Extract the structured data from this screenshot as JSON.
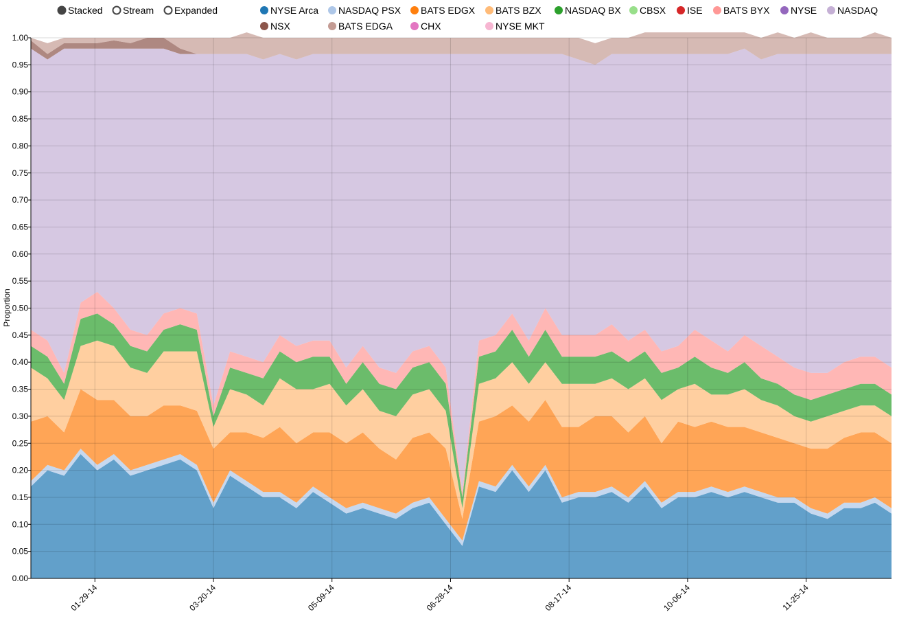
{
  "controls": [
    {
      "label": "Stacked",
      "selected": true
    },
    {
      "label": "Stream",
      "selected": false
    },
    {
      "label": "Expanded",
      "selected": false
    }
  ],
  "chart_data": {
    "type": "area",
    "stacked": true,
    "ylabel": "Proportion",
    "ylim": [
      0,
      1
    ],
    "y_ticks": [
      "0.00",
      "0.05",
      "0.10",
      "0.15",
      "0.20",
      "0.25",
      "0.30",
      "0.35",
      "0.40",
      "0.45",
      "0.50",
      "0.55",
      "0.60",
      "0.65",
      "0.70",
      "0.75",
      "0.80",
      "0.85",
      "0.90",
      "0.95",
      "1.00"
    ],
    "x_tick_labels": [
      "01-29-14",
      "03-20-14",
      "05-09-14",
      "06-28-14",
      "08-17-14",
      "10-06-14",
      "11-25-14"
    ],
    "x_tick_dates": [
      "2014-01-29",
      "2014-03-20",
      "2014-05-09",
      "2014-06-28",
      "2014-08-17",
      "2014-10-06",
      "2014-11-25"
    ],
    "x_range": [
      "2014-01-02",
      "2014-12-31"
    ],
    "grid": true,
    "legend_position": "top",
    "x": [
      "2014-01-02",
      "2014-01-09",
      "2014-01-16",
      "2014-01-23",
      "2014-01-30",
      "2014-02-06",
      "2014-02-13",
      "2014-02-20",
      "2014-02-27",
      "2014-03-06",
      "2014-03-13",
      "2014-03-20",
      "2014-03-27",
      "2014-04-03",
      "2014-04-10",
      "2014-04-17",
      "2014-04-24",
      "2014-05-01",
      "2014-05-08",
      "2014-05-15",
      "2014-05-22",
      "2014-05-29",
      "2014-06-05",
      "2014-06-12",
      "2014-06-19",
      "2014-06-26",
      "2014-07-03",
      "2014-07-10",
      "2014-07-17",
      "2014-07-24",
      "2014-07-31",
      "2014-08-07",
      "2014-08-14",
      "2014-08-21",
      "2014-08-28",
      "2014-09-04",
      "2014-09-11",
      "2014-09-18",
      "2014-09-25",
      "2014-10-02",
      "2014-10-09",
      "2014-10-16",
      "2014-10-23",
      "2014-10-30",
      "2014-11-06",
      "2014-11-13",
      "2014-11-20",
      "2014-11-27",
      "2014-12-04",
      "2014-12-11",
      "2014-12-18",
      "2014-12-24",
      "2014-12-31"
    ],
    "series": [
      {
        "name": "NYSE Arca",
        "color": "#1f77b4",
        "values": [
          0.17,
          0.2,
          0.19,
          0.23,
          0.2,
          0.22,
          0.19,
          0.2,
          0.21,
          0.22,
          0.2,
          0.13,
          0.19,
          0.17,
          0.15,
          0.15,
          0.13,
          0.16,
          0.14,
          0.12,
          0.13,
          0.12,
          0.11,
          0.13,
          0.14,
          0.1,
          0.06,
          0.17,
          0.16,
          0.2,
          0.16,
          0.2,
          0.14,
          0.15,
          0.15,
          0.16,
          0.14,
          0.17,
          0.13,
          0.15,
          0.15,
          0.16,
          0.15,
          0.16,
          0.15,
          0.14,
          0.14,
          0.12,
          0.11,
          0.13,
          0.13,
          0.14,
          0.12
        ]
      },
      {
        "name": "NASDAQ PSX",
        "color": "#aec7e8",
        "values": [
          0.01,
          0.01,
          0.01,
          0.01,
          0.01,
          0.01,
          0.01,
          0.01,
          0.01,
          0.01,
          0.01,
          0.01,
          0.01,
          0.01,
          0.01,
          0.01,
          0.01,
          0.01,
          0.01,
          0.01,
          0.01,
          0.01,
          0.01,
          0.01,
          0.01,
          0.01,
          0.01,
          0.01,
          0.01,
          0.01,
          0.01,
          0.01,
          0.01,
          0.01,
          0.01,
          0.01,
          0.01,
          0.01,
          0.01,
          0.01,
          0.01,
          0.01,
          0.01,
          0.01,
          0.01,
          0.01,
          0.01,
          0.01,
          0.01,
          0.01,
          0.01,
          0.01,
          0.01
        ]
      },
      {
        "name": "BATS EDGX",
        "color": "#ff7f0e",
        "values": [
          0.11,
          0.09,
          0.07,
          0.11,
          0.12,
          0.1,
          0.1,
          0.09,
          0.1,
          0.09,
          0.1,
          0.1,
          0.07,
          0.09,
          0.1,
          0.12,
          0.11,
          0.1,
          0.12,
          0.12,
          0.13,
          0.11,
          0.1,
          0.12,
          0.12,
          0.13,
          0.04,
          0.11,
          0.13,
          0.11,
          0.12,
          0.12,
          0.13,
          0.12,
          0.14,
          0.13,
          0.12,
          0.12,
          0.11,
          0.13,
          0.12,
          0.12,
          0.12,
          0.11,
          0.11,
          0.11,
          0.1,
          0.11,
          0.12,
          0.12,
          0.13,
          0.12,
          0.12
        ]
      },
      {
        "name": "BATS BZX",
        "color": "#ffbb78",
        "values": [
          0.1,
          0.07,
          0.06,
          0.08,
          0.11,
          0.1,
          0.09,
          0.08,
          0.1,
          0.1,
          0.11,
          0.04,
          0.08,
          0.07,
          0.06,
          0.09,
          0.1,
          0.08,
          0.09,
          0.07,
          0.08,
          0.07,
          0.08,
          0.08,
          0.08,
          0.07,
          0.02,
          0.07,
          0.07,
          0.08,
          0.07,
          0.07,
          0.08,
          0.08,
          0.06,
          0.07,
          0.08,
          0.07,
          0.08,
          0.06,
          0.08,
          0.05,
          0.06,
          0.07,
          0.06,
          0.06,
          0.05,
          0.05,
          0.06,
          0.05,
          0.05,
          0.05,
          0.05
        ]
      },
      {
        "name": "NASDAQ BX",
        "color": "#2ca02c",
        "values": [
          0.04,
          0.04,
          0.03,
          0.05,
          0.05,
          0.04,
          0.04,
          0.04,
          0.04,
          0.05,
          0.04,
          0.02,
          0.04,
          0.04,
          0.05,
          0.05,
          0.05,
          0.06,
          0.05,
          0.04,
          0.05,
          0.05,
          0.05,
          0.05,
          0.05,
          0.05,
          0.02,
          0.05,
          0.05,
          0.06,
          0.05,
          0.06,
          0.05,
          0.05,
          0.05,
          0.05,
          0.05,
          0.05,
          0.05,
          0.04,
          0.05,
          0.05,
          0.04,
          0.05,
          0.04,
          0.04,
          0.04,
          0.04,
          0.04,
          0.04,
          0.04,
          0.04,
          0.04
        ]
      },
      {
        "name": "CBSX",
        "color": "#98df8a",
        "values": [
          0,
          0,
          0,
          0,
          0,
          0,
          0,
          0,
          0,
          0,
          0,
          0,
          0,
          0,
          0,
          0,
          0,
          0,
          0,
          0,
          0,
          0,
          0,
          0,
          0,
          0,
          0,
          0,
          0,
          0,
          0,
          0,
          0,
          0,
          0,
          0,
          0,
          0,
          0,
          0,
          0,
          0,
          0,
          0,
          0,
          0,
          0,
          0,
          0,
          0,
          0,
          0,
          0
        ]
      },
      {
        "name": "ISE",
        "color": "#d62728",
        "values": [
          0,
          0,
          0,
          0,
          0,
          0,
          0,
          0,
          0,
          0,
          0,
          0,
          0,
          0,
          0,
          0,
          0,
          0,
          0,
          0,
          0,
          0,
          0,
          0,
          0,
          0,
          0,
          0,
          0,
          0,
          0,
          0,
          0,
          0,
          0,
          0,
          0,
          0,
          0,
          0,
          0,
          0,
          0,
          0,
          0,
          0,
          0,
          0,
          0,
          0,
          0,
          0,
          0
        ]
      },
      {
        "name": "BATS BYX",
        "color": "#ff9896",
        "values": [
          0.03,
          0.03,
          0.02,
          0.03,
          0.04,
          0.03,
          0.03,
          0.03,
          0.03,
          0.03,
          0.03,
          0.02,
          0.03,
          0.03,
          0.03,
          0.03,
          0.03,
          0.03,
          0.03,
          0.03,
          0.03,
          0.03,
          0.03,
          0.03,
          0.03,
          0.03,
          0.01,
          0.03,
          0.03,
          0.03,
          0.03,
          0.04,
          0.04,
          0.04,
          0.04,
          0.05,
          0.04,
          0.04,
          0.04,
          0.04,
          0.05,
          0.05,
          0.04,
          0.05,
          0.06,
          0.05,
          0.05,
          0.05,
          0.04,
          0.05,
          0.05,
          0.05,
          0.05
        ]
      },
      {
        "name": "NYSE",
        "color": "#9467bd",
        "values": [
          0,
          0,
          0,
          0,
          0,
          0,
          0,
          0,
          0,
          0,
          0,
          0,
          0,
          0,
          0,
          0,
          0,
          0,
          0,
          0,
          0,
          0,
          0,
          0,
          0,
          0,
          0,
          0,
          0,
          0,
          0,
          0,
          0,
          0,
          0,
          0,
          0,
          0,
          0,
          0,
          0,
          0,
          0,
          0,
          0,
          0,
          0,
          0,
          0,
          0,
          0,
          0,
          0
        ]
      },
      {
        "name": "NASDAQ",
        "color": "#c5b0d5",
        "values": [
          0.52,
          0.52,
          0.6,
          0.47,
          0.45,
          0.48,
          0.52,
          0.53,
          0.49,
          0.47,
          0.48,
          0.65,
          0.55,
          0.56,
          0.56,
          0.52,
          0.53,
          0.53,
          0.53,
          0.58,
          0.54,
          0.58,
          0.59,
          0.55,
          0.54,
          0.58,
          0.81,
          0.53,
          0.52,
          0.48,
          0.53,
          0.47,
          0.52,
          0.51,
          0.5,
          0.5,
          0.53,
          0.51,
          0.55,
          0.54,
          0.51,
          0.53,
          0.55,
          0.53,
          0.53,
          0.56,
          0.58,
          0.59,
          0.59,
          0.57,
          0.56,
          0.56,
          0.58
        ]
      },
      {
        "name": "NSX",
        "color": "#8c564b",
        "values": [
          0.015,
          0.01,
          0.01,
          0.01,
          0.01,
          0.015,
          0.01,
          0.02,
          0.02,
          0.01,
          0,
          0,
          0,
          0,
          0,
          0,
          0,
          0,
          0,
          0,
          0,
          0,
          0,
          0,
          0,
          0,
          0,
          0,
          0,
          0,
          0,
          0,
          0,
          0,
          0,
          0,
          0,
          0,
          0,
          0,
          0,
          0,
          0,
          0,
          0,
          0,
          0,
          0,
          0,
          0,
          0,
          0,
          0
        ]
      },
      {
        "name": "BATS EDGA",
        "color": "#c49c94",
        "values": [
          0.005,
          0.02,
          0.01,
          0.01,
          0.01,
          0.005,
          0.01,
          0,
          0,
          0.02,
          0.03,
          0.03,
          0.03,
          0.04,
          0.04,
          0.03,
          0.04,
          0.03,
          0.03,
          0.03,
          0.03,
          0.03,
          0.03,
          0.03,
          0.03,
          0.03,
          0.03,
          0.03,
          0.03,
          0.03,
          0.03,
          0.03,
          0.03,
          0.04,
          0.04,
          0.03,
          0.03,
          0.04,
          0.04,
          0.04,
          0.04,
          0.04,
          0.04,
          0.03,
          0.04,
          0.04,
          0.03,
          0.04,
          0.03,
          0.03,
          0.03,
          0.04,
          0.03
        ]
      },
      {
        "name": "CHX",
        "color": "#e377c2",
        "values": [
          0,
          0,
          0,
          0,
          0,
          0,
          0,
          0,
          0,
          0,
          0,
          0,
          0,
          0,
          0,
          0,
          0,
          0,
          0,
          0,
          0,
          0,
          0,
          0,
          0,
          0,
          0,
          0,
          0,
          0,
          0,
          0,
          0,
          0,
          0,
          0,
          0,
          0,
          0,
          0,
          0,
          0,
          0,
          0,
          0,
          0,
          0,
          0,
          0,
          0,
          0,
          0,
          0
        ]
      },
      {
        "name": "NYSE MKT",
        "color": "#f7b6d2",
        "values": [
          0,
          0,
          0,
          0,
          0,
          0,
          0,
          0,
          0,
          0,
          0,
          0,
          0,
          0,
          0,
          0,
          0,
          0,
          0,
          0,
          0,
          0,
          0,
          0,
          0,
          0,
          0,
          0,
          0,
          0,
          0,
          0,
          0,
          0,
          0,
          0,
          0,
          0,
          0,
          0,
          0,
          0,
          0,
          0,
          0,
          0,
          0,
          0,
          0,
          0,
          0,
          0,
          0
        ]
      }
    ]
  }
}
